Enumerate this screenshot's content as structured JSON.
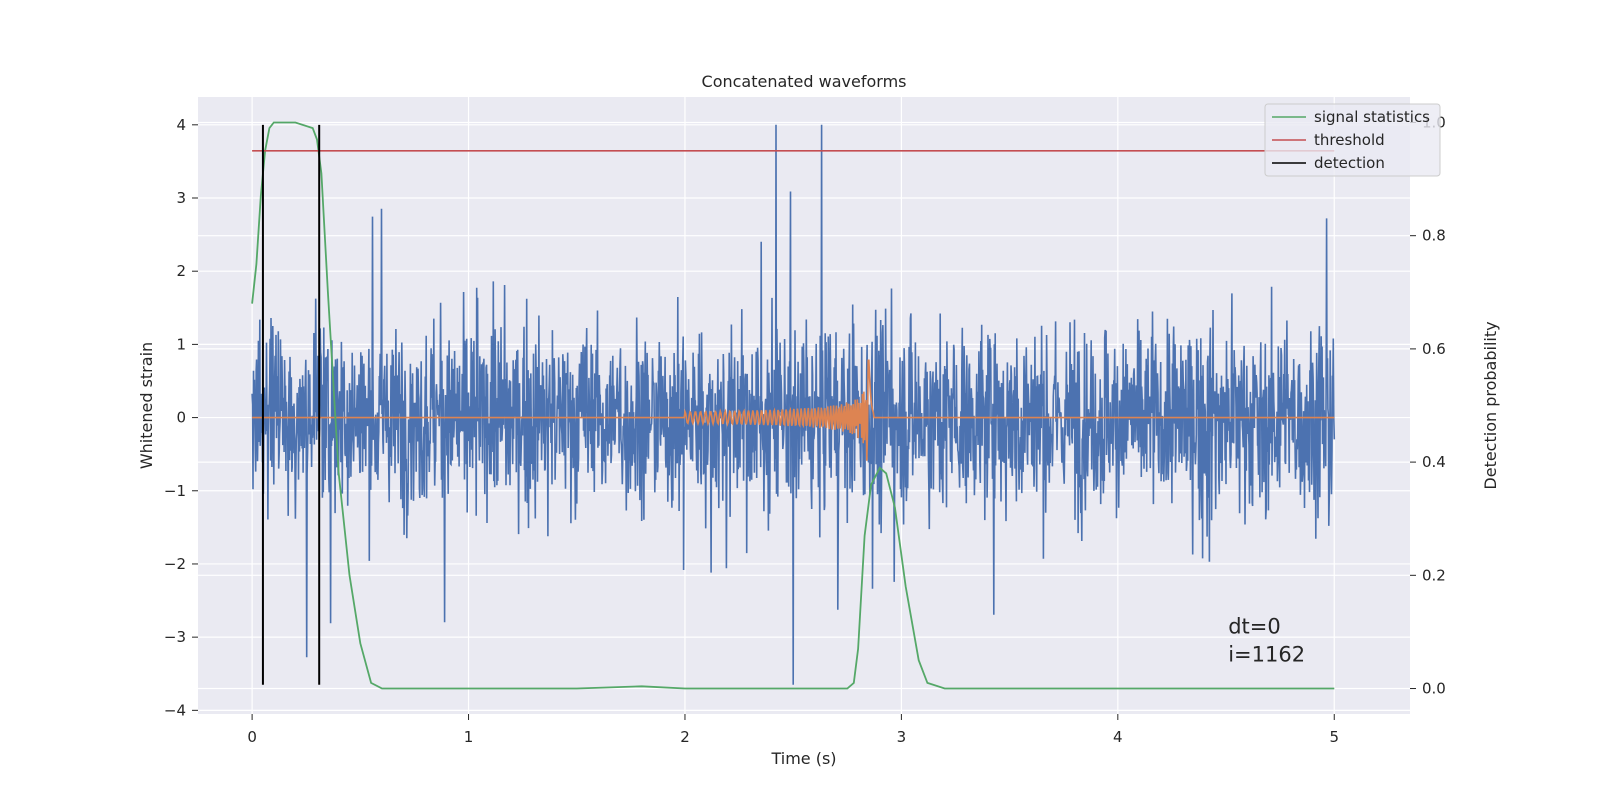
{
  "chart_data": {
    "type": "line",
    "title": "Concatenated waveforms",
    "xlabel": "Time (s)",
    "ylabel": "Whitened strain",
    "y2label": "Detection probability",
    "xlim": [
      -0.25,
      5.35
    ],
    "ylim": [
      -4.05,
      4.38
    ],
    "y2lim": [
      -0.045,
      1.045
    ],
    "xticks": [
      0,
      1,
      2,
      3,
      4,
      5
    ],
    "yticks": [
      4,
      3,
      2,
      1,
      0,
      -1,
      -2,
      -3,
      -4
    ],
    "y2ticks": [
      1.0,
      0.8,
      0.6,
      0.4,
      0.2,
      0.0
    ],
    "xtick_labels": [
      "0",
      "1",
      "2",
      "3",
      "4",
      "5"
    ],
    "ytick_labels": [
      "4",
      "3",
      "2",
      "1",
      "0",
      "−1",
      "−2",
      "−3",
      "−4"
    ],
    "y2tick_labels": [
      "1.0",
      "0.8",
      "0.6",
      "0.4",
      "0.2",
      "0.0"
    ],
    "grid": true,
    "legend_position": "top-right",
    "annotation": [
      "dt=0",
      "i=1162"
    ],
    "series": [
      {
        "name": "",
        "role": "whitened strain noise",
        "color": "#4c72b0",
        "axis": "left",
        "x_range": [
          0,
          5
        ],
        "envelope": {
          "typical_abs": 1.6,
          "peak_max": 4.0,
          "peak_min": -3.65
        }
      },
      {
        "name": "",
        "role": "injected chirp waveform",
        "color": "#dd8452",
        "axis": "left",
        "x_range": [
          0,
          5
        ],
        "chirp": {
          "t_start": 2.0,
          "t_merger": 2.85,
          "amp_max": 0.8,
          "amp_min": -0.85
        }
      },
      {
        "name": "signal statistics",
        "color": "#55a868",
        "axis": "right",
        "points": [
          [
            0.0,
            0.68
          ],
          [
            0.02,
            0.75
          ],
          [
            0.04,
            0.87
          ],
          [
            0.06,
            0.95
          ],
          [
            0.08,
            0.99
          ],
          [
            0.1,
            1.0
          ],
          [
            0.2,
            1.0
          ],
          [
            0.28,
            0.99
          ],
          [
            0.3,
            0.97
          ],
          [
            0.32,
            0.91
          ],
          [
            0.35,
            0.7
          ],
          [
            0.4,
            0.38
          ],
          [
            0.45,
            0.2
          ],
          [
            0.5,
            0.08
          ],
          [
            0.55,
            0.01
          ],
          [
            0.6,
            0.0
          ],
          [
            1.5,
            0.0
          ],
          [
            1.8,
            0.004
          ],
          [
            2.0,
            0.0
          ],
          [
            2.75,
            0.0
          ],
          [
            2.78,
            0.01
          ],
          [
            2.8,
            0.07
          ],
          [
            2.83,
            0.27
          ],
          [
            2.86,
            0.36
          ],
          [
            2.9,
            0.39
          ],
          [
            2.93,
            0.38
          ],
          [
            2.97,
            0.32
          ],
          [
            3.02,
            0.18
          ],
          [
            3.08,
            0.05
          ],
          [
            3.12,
            0.01
          ],
          [
            3.2,
            0.0
          ],
          [
            5.0,
            0.0
          ]
        ]
      },
      {
        "name": "threshold",
        "color": "#c44e52",
        "axis": "right",
        "x": [
          0,
          5
        ],
        "value": 0.95
      },
      {
        "name": "detection",
        "color": "#000000",
        "axis": "left",
        "x": [
          0.05,
          0.31
        ],
        "y_range": [
          -3.65,
          4.0
        ]
      }
    ]
  }
}
